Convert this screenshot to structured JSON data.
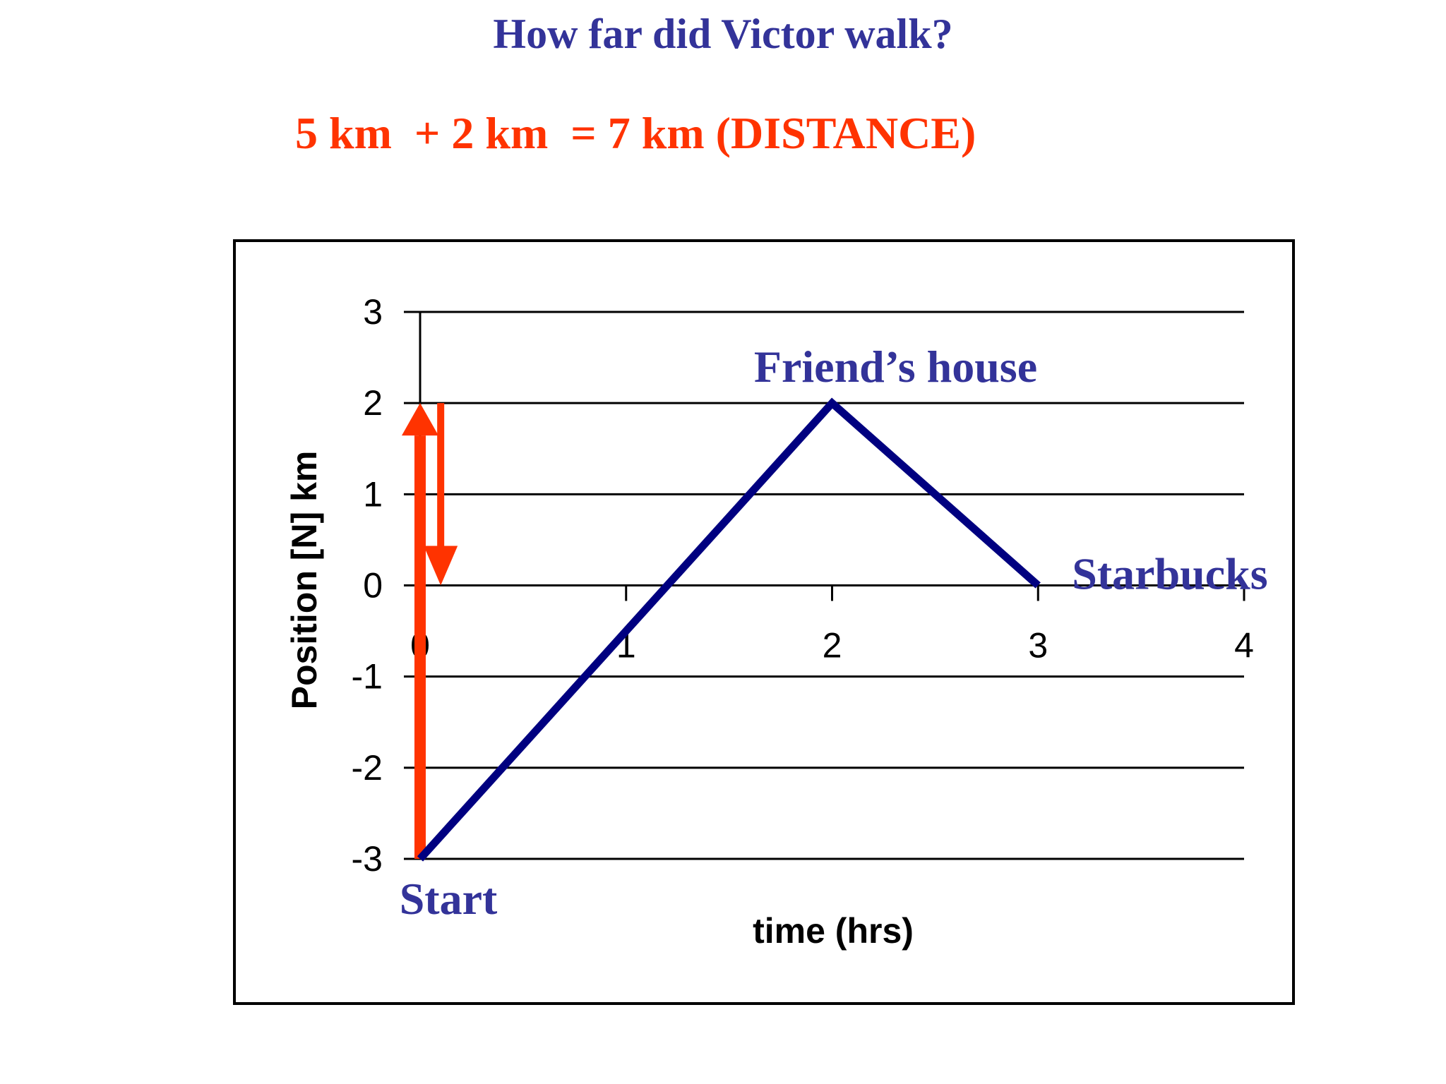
{
  "slide": {
    "title": "How far did Victor walk?",
    "equation": "5 km  + 2 km  = 7 km (DISTANCE)"
  },
  "colors": {
    "title": "#333399",
    "equation": "#ff3300",
    "series_line": "#000080",
    "arrows": "#ff3300",
    "annotations": "#333399"
  },
  "chart_data": {
    "type": "line",
    "title": "",
    "xlabel": "time (hrs)",
    "ylabel": "Position [N] km",
    "xlim": [
      0,
      4
    ],
    "ylim": [
      -3,
      3
    ],
    "x_ticks": [
      "0",
      "1",
      "2",
      "3",
      "4"
    ],
    "y_ticks": [
      "3",
      "2",
      "1",
      "0",
      "-1",
      "-2",
      "-3"
    ],
    "grid": "horizontal",
    "legend": "none",
    "series": [
      {
        "x": [
          0,
          2,
          3
        ],
        "y": [
          -3,
          2,
          0
        ]
      }
    ],
    "annotations": [
      {
        "text": "Friend’s house",
        "x": 2,
        "y": 2
      },
      {
        "text": "Starbucks",
        "x": 3,
        "y": 0
      },
      {
        "text": "Start",
        "x": 0,
        "y": -3
      }
    ],
    "arrows": [
      {
        "direction": "up",
        "x": 0,
        "from": -3,
        "to": 2
      },
      {
        "direction": "down",
        "x": 0.1,
        "from": 2,
        "to": 0
      }
    ]
  }
}
